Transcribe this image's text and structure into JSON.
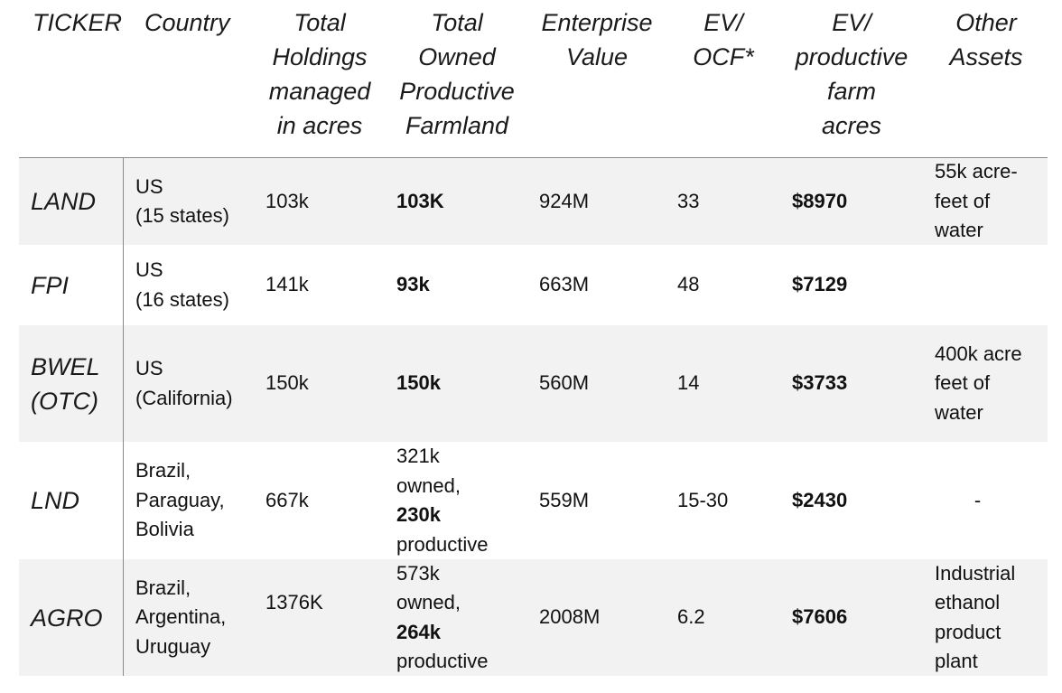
{
  "headers": {
    "ticker": "TICKER",
    "country": "Country",
    "total_holdings": "Total\nHoldings\nmanaged\nin acres",
    "owned_farmland": "Total\nOwned\nProductive\nFarmland",
    "enterprise_value": "Enterprise\nValue",
    "ev_ocf": "EV/\nOCF*",
    "ev_acres": "EV/\nproductive\nfarm\nacres",
    "other_assets": "Other\nAssets"
  },
  "rows": [
    {
      "ticker": "LAND",
      "country": "US\n(15 states)",
      "holdings": "103k",
      "owned": "103K",
      "ev": "924M",
      "ev_ocf": "33",
      "ev_acre": "$8970",
      "other": "55k acre-\nfeet of\nwater"
    },
    {
      "ticker": "FPI",
      "country": "US\n(16 states)",
      "holdings": "141k",
      "owned": "93k",
      "ev": "663M",
      "ev_ocf": "48",
      "ev_acre": "$7129",
      "other": ""
    },
    {
      "ticker": "BWEL\n(OTC)",
      "country": "US\n(California)",
      "holdings": "150k",
      "owned": "150k",
      "ev": "560M",
      "ev_ocf": "14",
      "ev_acre": "$3733",
      "other": "400k acre\nfeet of\nwater"
    },
    {
      "ticker": "LND",
      "country": "Brazil,\nParaguay,\nBolivia",
      "holdings": "667k",
      "owned_pre": "321k\nowned,",
      "owned_bold": "230k",
      "owned_post": "productive",
      "ev": "559M",
      "ev_ocf": "15-30",
      "ev_acre": "$2430",
      "other": "-"
    },
    {
      "ticker": "AGRO",
      "country": "Brazil,\nArgentina,\nUruguay",
      "holdings": "1376K",
      "owned_pre": "573k\nowned,",
      "owned_bold": "264k",
      "owned_post": "productive",
      "ev": "2008M",
      "ev_ocf": "6.2",
      "ev_acre": "$7606",
      "other": "Industrial\nethanol\nproduct\nplant"
    }
  ]
}
